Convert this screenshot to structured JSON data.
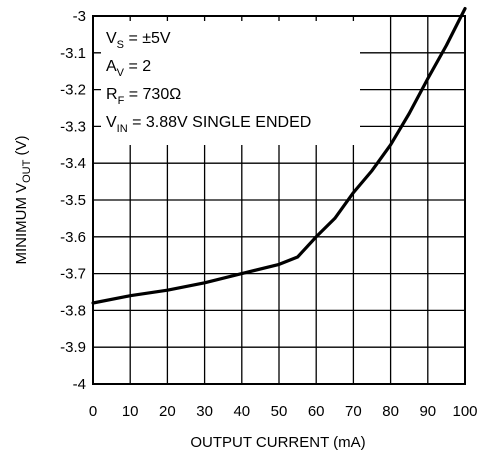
{
  "chart_data": {
    "type": "line",
    "xlabel": "OUTPUT CURRENT (mA)",
    "ylabel": {
      "main": "MINIMUM V",
      "subscript": "OUT",
      "unit": " (V)"
    },
    "xlim": [
      0,
      100
    ],
    "ylim": [
      -4,
      -3
    ],
    "x_ticks": [
      "0",
      "10",
      "20",
      "30",
      "40",
      "50",
      "60",
      "70",
      "80",
      "90",
      "100"
    ],
    "y_ticks": [
      "-3",
      "-3.1",
      "-3.2",
      "-3.3",
      "-3.4",
      "-3.5",
      "-3.6",
      "-3.7",
      "-3.8",
      "-3.9",
      "-4"
    ],
    "grid": true,
    "annotations": [
      {
        "main": "V",
        "sub": "S",
        "rest": " = ±5V"
      },
      {
        "main": "A",
        "sub": "V",
        "rest": " = 2"
      },
      {
        "main": "R",
        "sub": "F",
        "rest": " = 730Ω"
      },
      {
        "main": "V",
        "sub": "IN",
        "rest": " = 3.88V SINGLE ENDED"
      }
    ],
    "series": [
      {
        "points": [
          [
            0,
            -3.78
          ],
          [
            10,
            -3.76
          ],
          [
            20,
            -3.745
          ],
          [
            30,
            -3.725
          ],
          [
            40,
            -3.7
          ],
          [
            50,
            -3.675
          ],
          [
            55,
            -3.655
          ],
          [
            60,
            -3.6
          ],
          [
            65,
            -3.55
          ],
          [
            70,
            -3.48
          ],
          [
            75,
            -3.42
          ],
          [
            80,
            -3.35
          ],
          [
            85,
            -3.265
          ],
          [
            90,
            -3.17
          ],
          [
            95,
            -3.08
          ],
          [
            100,
            -2.98
          ]
        ]
      }
    ]
  }
}
